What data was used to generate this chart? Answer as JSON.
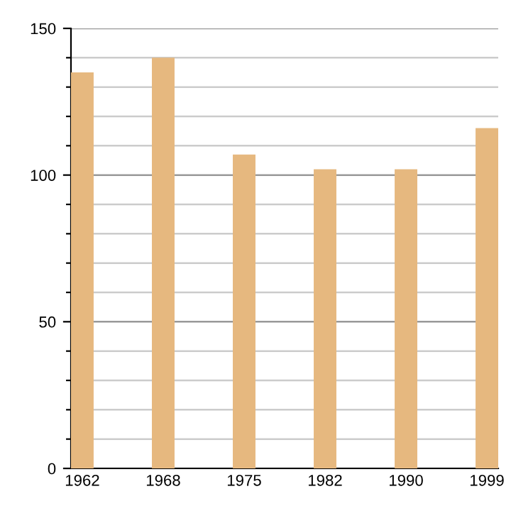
{
  "chart_data": {
    "type": "bar",
    "categories": [
      "1962",
      "1968",
      "1975",
      "1982",
      "1990",
      "1999"
    ],
    "values": [
      135,
      140,
      107,
      102,
      102,
      116
    ],
    "color": "#e6b87f",
    "ylim": [
      0,
      150
    ],
    "yticks": [
      0,
      {
        "value": 10,
        "label": null
      },
      {
        "value": 20,
        "label": null
      },
      {
        "value": 30,
        "label": null
      },
      {
        "value": 40,
        "label": null
      },
      50,
      {
        "value": 60,
        "label": null
      },
      {
        "value": 70,
        "label": null
      },
      {
        "value": 80,
        "label": null
      },
      {
        "value": 90,
        "label": null
      },
      100,
      {
        "value": 110,
        "label": null
      },
      {
        "value": 120,
        "label": null
      },
      {
        "value": 130,
        "label": null
      },
      {
        "value": 140,
        "label": null
      },
      150
    ],
    "grid": "y"
  }
}
